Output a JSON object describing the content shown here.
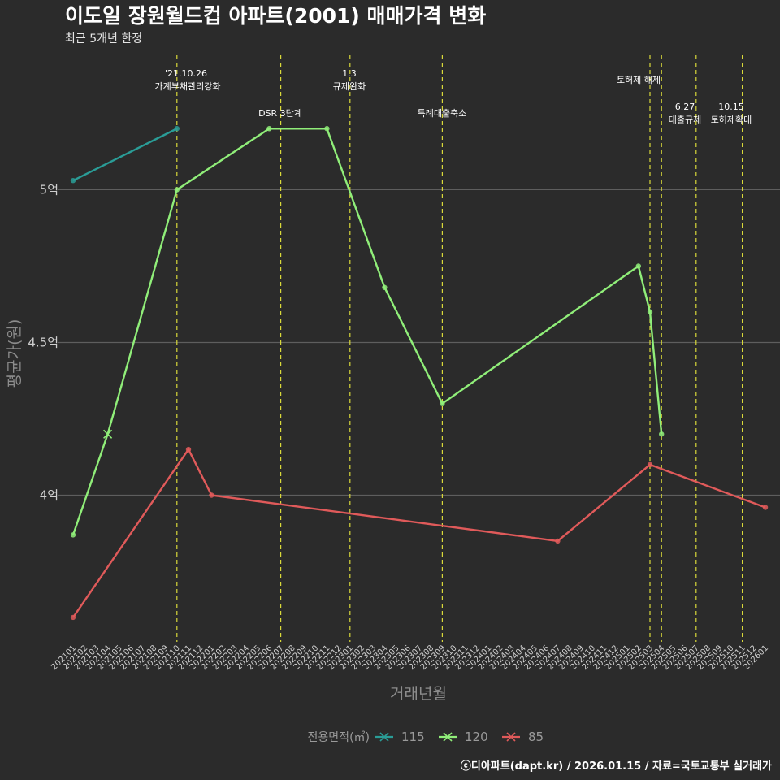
{
  "chart_data": {
    "type": "line",
    "title": "이도일 장원월드컵 아파트(2001) 매매가격 변화",
    "subtitle": "최근 5개년 한정",
    "xlabel": "거래년월",
    "ylabel": "평균가(원)",
    "caption": "ⓒ디아파트(dapt.kr) / 2026.01.15 / 자료=국토교통부 실거래가",
    "x_categories": [
      "202101",
      "202102",
      "202103",
      "202104",
      "202105",
      "202106",
      "202107",
      "202108",
      "202109",
      "202110",
      "202111",
      "202112",
      "202201",
      "202202",
      "202203",
      "202204",
      "202205",
      "202206",
      "202207",
      "202208",
      "202209",
      "202210",
      "202211",
      "202212",
      "202301",
      "202302",
      "202303",
      "202304",
      "202305",
      "202306",
      "202307",
      "202308",
      "202309",
      "202310",
      "202311",
      "202312",
      "202401",
      "202402",
      "202403",
      "202404",
      "202405",
      "202406",
      "202407",
      "202408",
      "202409",
      "202410",
      "202411",
      "202412",
      "202501",
      "202502",
      "202503",
      "202504",
      "202505",
      "202506",
      "202507",
      "202508",
      "202509",
      "202510",
      "202511",
      "202512",
      "202601"
    ],
    "ylim": [
      3.52,
      5.44
    ],
    "y_ticks": [
      {
        "value": 4.0,
        "label": "4억"
      },
      {
        "value": 4.5,
        "label": "4.5억"
      },
      {
        "value": 5.0,
        "label": "5억"
      }
    ],
    "legend": {
      "title": "전용면적(㎡)",
      "placement": "bottom"
    },
    "series": [
      {
        "name": "115",
        "color": "#2a9d97",
        "points": [
          {
            "x": "202101",
            "y": 5.03
          },
          {
            "x": "202110",
            "y": 5.2
          }
        ]
      },
      {
        "name": "120",
        "color": "#90ee79",
        "points": [
          {
            "x": "202101",
            "y": 3.87
          },
          {
            "x": "202104",
            "y": 4.2
          },
          {
            "x": "202110",
            "y": 5.0
          },
          {
            "x": "202206",
            "y": 5.2
          },
          {
            "x": "202211",
            "y": 5.2
          },
          {
            "x": "202304",
            "y": 4.68
          },
          {
            "x": "202309",
            "y": 4.3
          },
          {
            "x": "202502",
            "y": 4.75
          },
          {
            "x": "202503",
            "y": 4.6
          },
          {
            "x": "202504",
            "y": 4.2
          }
        ]
      },
      {
        "name": "85",
        "color": "#e05a5a",
        "points": [
          {
            "x": "202101",
            "y": 3.6
          },
          {
            "x": "202111",
            "y": 4.15
          },
          {
            "x": "202201",
            "y": 4.0
          },
          {
            "x": "202407",
            "y": 3.85
          },
          {
            "x": "202503",
            "y": 4.1
          },
          {
            "x": "202601",
            "y": 3.96
          }
        ]
      }
    ],
    "events": [
      {
        "x": "202110",
        "lines": [
          "'21.10.26",
          "가계부채관리강화"
        ]
      },
      {
        "x": "202207",
        "lines": [
          "DSR 3단계"
        ]
      },
      {
        "x": "202301",
        "lines": [
          "1.3",
          "규제완화"
        ]
      },
      {
        "x": "202309",
        "lines": [
          "특례대출축소"
        ]
      },
      {
        "x": "202503",
        "lines": [
          "토허제 해제"
        ]
      },
      {
        "x": "202504",
        "lines": []
      },
      {
        "x": "202507",
        "lines": [
          "6.27",
          "대출규제"
        ]
      },
      {
        "x": "202511",
        "lines": [
          "10.15",
          "토허제확대"
        ]
      }
    ]
  }
}
